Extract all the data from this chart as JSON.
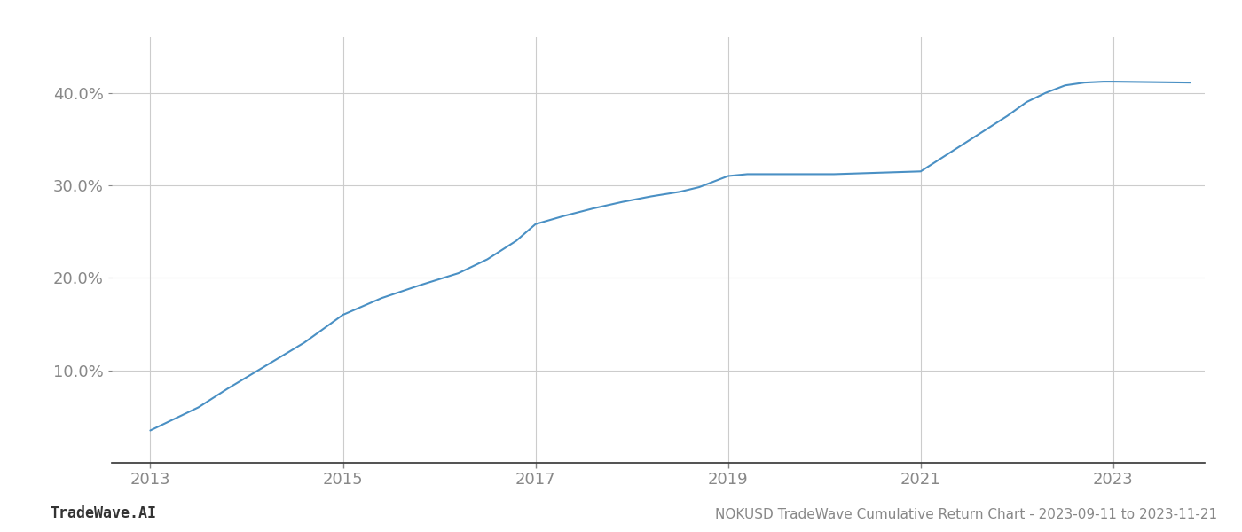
{
  "title": "NOKUSD TradeWave Cumulative Return Chart - 2023-09-11 to 2023-11-21",
  "watermark": "TradeWave.AI",
  "line_color": "#4a90c4",
  "background_color": "#ffffff",
  "grid_color": "#cccccc",
  "tick_color": "#888888",
  "x_years": [
    2013.0,
    2013.2,
    2013.5,
    2013.8,
    2014.2,
    2014.6,
    2015.0,
    2015.4,
    2015.8,
    2016.2,
    2016.5,
    2016.8,
    2017.0,
    2017.3,
    2017.6,
    2017.9,
    2018.2,
    2018.5,
    2018.7,
    2019.0,
    2019.2,
    2019.5,
    2019.8,
    2020.1,
    2020.4,
    2020.7,
    2021.0,
    2021.3,
    2021.6,
    2021.9,
    2022.1,
    2022.3,
    2022.5,
    2022.7,
    2022.9,
    2023.0,
    2023.8
  ],
  "y_values": [
    3.5,
    4.5,
    6.0,
    8.0,
    10.5,
    13.0,
    16.0,
    17.8,
    19.2,
    20.5,
    22.0,
    24.0,
    25.8,
    26.7,
    27.5,
    28.2,
    28.8,
    29.3,
    29.8,
    31.0,
    31.2,
    31.2,
    31.2,
    31.2,
    31.3,
    31.4,
    31.5,
    33.5,
    35.5,
    37.5,
    39.0,
    40.0,
    40.8,
    41.1,
    41.2,
    41.2,
    41.1
  ],
  "ylim": [
    0,
    46
  ],
  "xlim": [
    2012.6,
    2023.95
  ],
  "yticks": [
    10.0,
    20.0,
    30.0,
    40.0
  ],
  "xticks": [
    2013,
    2015,
    2017,
    2019,
    2021,
    2023
  ],
  "line_width": 1.5,
  "figsize": [
    14,
    6
  ],
  "dpi": 100
}
